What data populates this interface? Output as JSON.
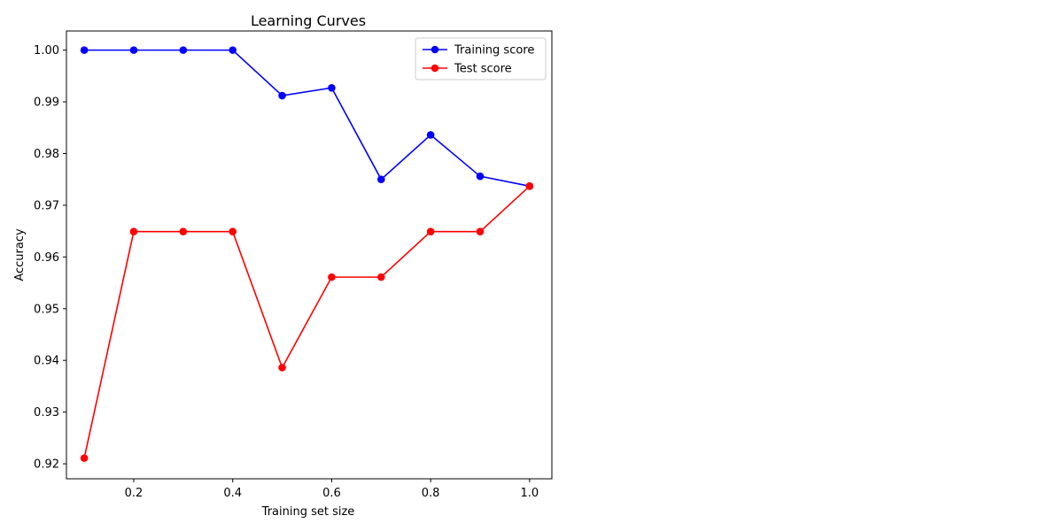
{
  "chart_data": {
    "type": "line",
    "title": "Learning Curves",
    "xlabel": "Training set size",
    "ylabel": "Accuracy",
    "x": [
      0.1,
      0.2,
      0.3,
      0.4,
      0.5,
      0.6,
      0.7,
      0.8,
      0.9,
      1.0
    ],
    "xlim": [
      0.064,
      1.045
    ],
    "ylim": [
      0.9171,
      1.0037
    ],
    "xticks": [
      0.2,
      0.4,
      0.6,
      0.8,
      1.0
    ],
    "xtick_labels": [
      "0.2",
      "0.4",
      "0.6",
      "0.8",
      "1.0"
    ],
    "yticks": [
      0.92,
      0.93,
      0.94,
      0.95,
      0.96,
      0.97,
      0.98,
      0.99,
      1.0
    ],
    "ytick_labels": [
      "0.92",
      "0.93",
      "0.94",
      "0.95",
      "0.96",
      "0.97",
      "0.98",
      "0.99",
      "1.00"
    ],
    "grid": false,
    "legend_position": "top-right",
    "series": [
      {
        "name": "Training score",
        "color": "#0000ff",
        "marker": "circle",
        "values": [
          1.0,
          1.0,
          1.0,
          1.0,
          0.9912,
          0.9927,
          0.975,
          0.9836,
          0.9756,
          0.9737
        ]
      },
      {
        "name": "Test score",
        "color": "#ff0000",
        "marker": "circle",
        "values": [
          0.9211,
          0.9649,
          0.9649,
          0.9649,
          0.9386,
          0.9561,
          0.9561,
          0.9649,
          0.9649,
          0.9737
        ]
      }
    ]
  }
}
